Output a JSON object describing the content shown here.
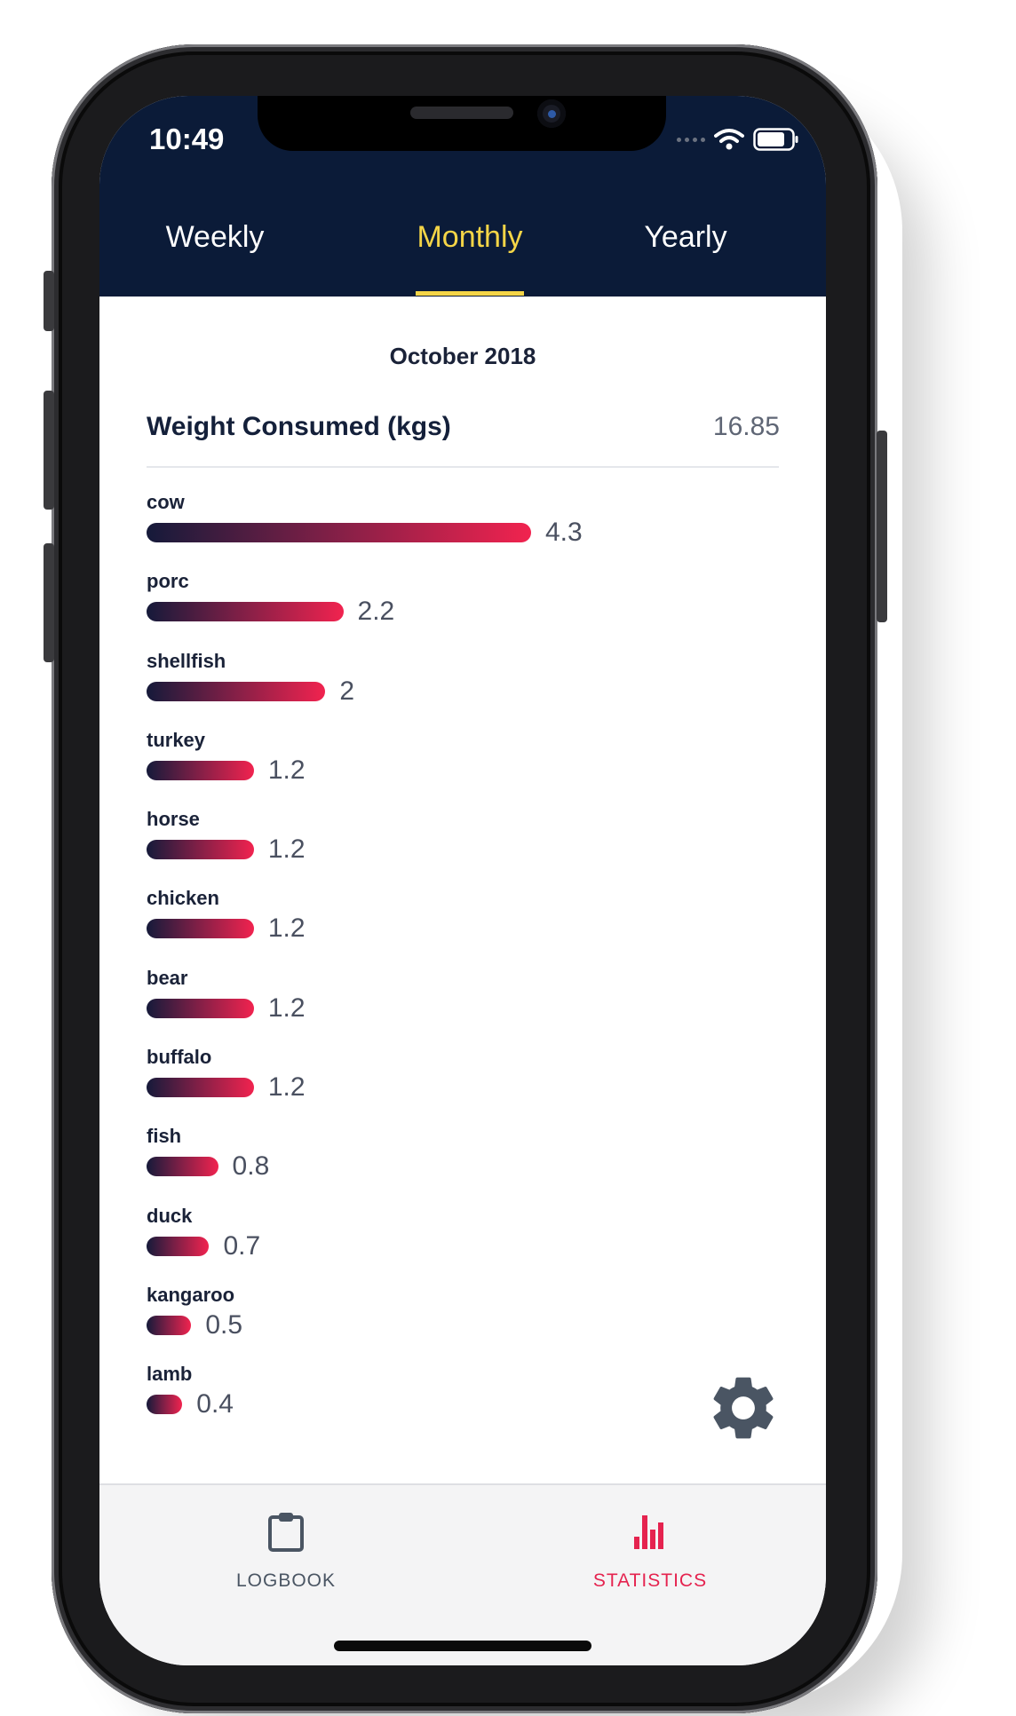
{
  "status_bar": {
    "time": "10:49"
  },
  "tabs": [
    {
      "label": "Weekly",
      "active": false
    },
    {
      "label": "Monthly",
      "active": true
    },
    {
      "label": "Yearly",
      "active": false
    }
  ],
  "period": "October 2018",
  "summary": {
    "label": "Weight Consumed (kgs)",
    "value": "16.85"
  },
  "chart_data": {
    "type": "bar",
    "orientation": "horizontal",
    "categories": [
      "cow",
      "porc",
      "shellfish",
      "turkey",
      "horse",
      "chicken",
      "bear",
      "buffalo",
      "fish",
      "duck",
      "kangaroo",
      "lamb"
    ],
    "values": [
      4.3,
      2.2,
      2,
      1.2,
      1.2,
      1.2,
      1.2,
      1.2,
      0.8,
      0.7,
      0.5,
      0.4
    ],
    "value_labels": [
      "4.3",
      "2.2",
      "2",
      "1.2",
      "1.2",
      "1.2",
      "1.2",
      "1.2",
      "0.8",
      "0.7",
      "0.5",
      "0.4"
    ],
    "colors": {
      "gradient_start": "#151a3a",
      "gradient_mid": "#7a1f46",
      "gradient_end": "#f1234f"
    }
  },
  "bottom_nav": [
    {
      "label": "LOGBOOK",
      "icon": "clipboard-icon",
      "active": false
    },
    {
      "label": "STATISTICS",
      "icon": "bar-chart-icon",
      "active": true
    }
  ],
  "theme": {
    "header_bg": "#0b1b38",
    "accent_yellow": "#f5d547",
    "accent_red": "#e5234f"
  }
}
